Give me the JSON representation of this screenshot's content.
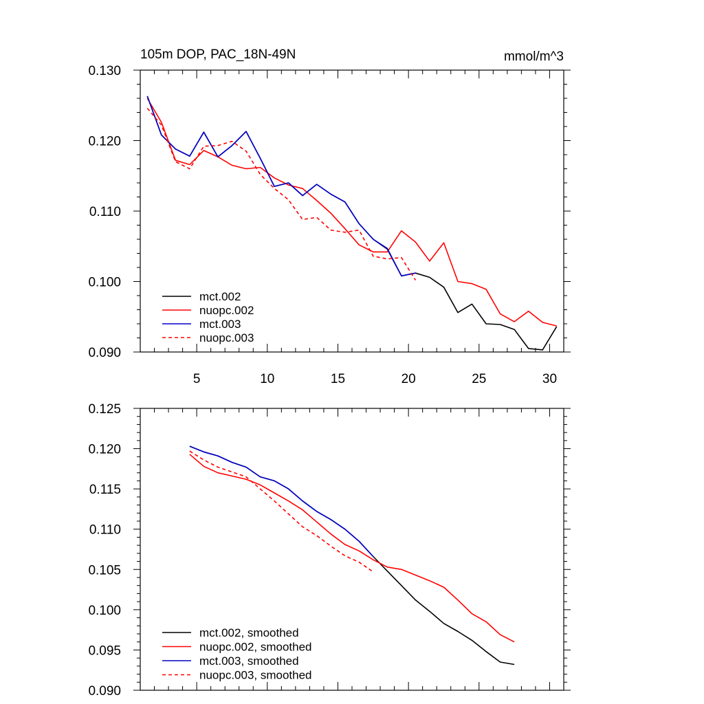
{
  "colors": {
    "mct_002": "#000000",
    "nuopc_002": "#ff0000",
    "mct_003": "#0000cc",
    "nuopc_003": "#ff0000"
  },
  "chart_data": [
    {
      "type": "line",
      "title": "105m DOP, PAC_18N-49N",
      "units": "mmol/m^3",
      "xlim": [
        1,
        31
      ],
      "ylim": [
        0.09,
        0.13
      ],
      "x_ticks": [
        5,
        10,
        15,
        20,
        25,
        30
      ],
      "x_tick_labels": [
        "5",
        "10",
        "15",
        "20",
        "25",
        "30"
      ],
      "y_ticks": [
        0.09,
        0.1,
        0.11,
        0.12,
        0.13
      ],
      "y_tick_labels": [
        "0.090",
        "0.100",
        "0.110",
        "0.120",
        "0.130"
      ],
      "legend_position": "bottom-left",
      "series": [
        {
          "name": "mct.002",
          "color_key": "mct_002",
          "dash": "solid",
          "x": [
            1.5,
            2.5,
            3.5,
            4.5,
            5.5,
            6.5,
            7.5,
            8.5,
            9.5,
            10.5,
            11.5,
            12.5,
            13.5,
            14.5,
            15.5,
            16.5,
            17.5,
            18.5,
            19.5,
            20.5,
            21.5,
            22.5,
            23.5,
            24.5,
            25.5,
            26.5,
            27.5,
            28.5,
            29.5,
            30.5
          ],
          "y": [
            0.1263,
            0.1208,
            0.1188,
            0.1178,
            0.1212,
            0.1177,
            0.1193,
            0.1213,
            0.1175,
            0.1135,
            0.114,
            0.1122,
            0.1138,
            0.1124,
            0.1113,
            0.1082,
            0.106,
            0.1046,
            0.1008,
            0.1012,
            0.1006,
            0.0992,
            0.0956,
            0.0968,
            0.094,
            0.0939,
            0.0932,
            0.0905,
            0.0903,
            0.0936
          ]
        },
        {
          "name": "nuopc.002",
          "color_key": "nuopc_002",
          "dash": "solid",
          "x": [
            1.5,
            2.5,
            3.5,
            4.5,
            5.5,
            6.5,
            7.5,
            8.5,
            9.5,
            10.5,
            11.5,
            12.5,
            13.5,
            14.5,
            15.5,
            16.5,
            17.5,
            18.5,
            19.5,
            20.5,
            21.5,
            22.5,
            23.5,
            24.5,
            25.5,
            26.5,
            27.5,
            28.5,
            29.5,
            30.5
          ],
          "y": [
            0.126,
            0.1226,
            0.1172,
            0.1166,
            0.1186,
            0.1177,
            0.1165,
            0.116,
            0.1162,
            0.1147,
            0.1137,
            0.1132,
            0.1115,
            0.1097,
            0.1075,
            0.1052,
            0.1042,
            0.1042,
            0.1072,
            0.1056,
            0.1029,
            0.1055,
            0.1,
            0.0997,
            0.0989,
            0.0954,
            0.0943,
            0.0958,
            0.0942,
            0.0937
          ]
        },
        {
          "name": "mct.003",
          "color_key": "mct_003",
          "dash": "solid",
          "x": [
            1.5,
            2.5,
            3.5,
            4.5,
            5.5,
            6.5,
            7.5,
            8.5,
            9.5,
            10.5,
            11.5,
            12.5,
            13.5,
            14.5,
            15.5,
            16.5,
            17.5,
            18.5,
            19.5,
            20.5
          ],
          "y": [
            0.1263,
            0.1208,
            0.1188,
            0.1178,
            0.1212,
            0.1177,
            0.1193,
            0.1213,
            0.1175,
            0.1135,
            0.114,
            0.1122,
            0.1138,
            0.1124,
            0.1113,
            0.1082,
            0.106,
            0.1047,
            0.1008,
            0.1012
          ]
        },
        {
          "name": "nuopc.003",
          "color_key": "nuopc_003",
          "dash": "dashed",
          "x": [
            1.5,
            2.5,
            3.5,
            4.5,
            5.5,
            6.5,
            7.5,
            8.5,
            9.5,
            10.5,
            11.5,
            12.5,
            13.5,
            14.5,
            15.5,
            16.5,
            17.5,
            18.5,
            19.5,
            20.5
          ],
          "y": [
            0.1246,
            0.1222,
            0.117,
            0.116,
            0.1192,
            0.1193,
            0.1199,
            0.1185,
            0.1152,
            0.1132,
            0.1116,
            0.1088,
            0.1091,
            0.1073,
            0.107,
            0.1073,
            0.1036,
            0.1032,
            0.1034,
            0.1002
          ]
        }
      ]
    },
    {
      "type": "line",
      "xlim": [
        1,
        31
      ],
      "ylim": [
        0.09,
        0.125
      ],
      "x_ticks": [
        5,
        10,
        15,
        20,
        25,
        30
      ],
      "y_ticks": [
        0.09,
        0.095,
        0.1,
        0.105,
        0.11,
        0.115,
        0.12,
        0.125
      ],
      "y_tick_labels": [
        "0.090",
        "0.095",
        "0.100",
        "0.105",
        "0.110",
        "0.115",
        "0.120",
        "0.125"
      ],
      "legend_position": "bottom-left",
      "series": [
        {
          "name": "mct.002, smoothed",
          "color_key": "mct_002",
          "dash": "solid",
          "x": [
            4.5,
            5.5,
            6.5,
            7.5,
            8.5,
            9.5,
            10.5,
            11.5,
            12.5,
            13.5,
            14.5,
            15.5,
            16.5,
            17.5,
            18.5,
            19.5,
            20.5,
            21.5,
            22.5,
            23.5,
            24.5,
            25.5,
            26.5,
            27.5
          ],
          "y": [
            0.1203,
            0.1196,
            0.1191,
            0.1183,
            0.1177,
            0.1165,
            0.116,
            0.115,
            0.1135,
            0.1122,
            0.1112,
            0.11,
            0.1085,
            0.1066,
            0.1048,
            0.103,
            0.1012,
            0.0998,
            0.0983,
            0.0973,
            0.0962,
            0.0948,
            0.0935,
            0.0932
          ]
        },
        {
          "name": "nuopc.002, smoothed",
          "color_key": "nuopc_002",
          "dash": "solid",
          "x": [
            4.5,
            5.5,
            6.5,
            7.5,
            8.5,
            9.5,
            10.5,
            11.5,
            12.5,
            13.5,
            14.5,
            15.5,
            16.5,
            17.5,
            18.5,
            19.5,
            20.5,
            21.5,
            22.5,
            23.5,
            24.5,
            25.5,
            26.5,
            27.5
          ],
          "y": [
            0.1193,
            0.1178,
            0.117,
            0.1166,
            0.1162,
            0.1155,
            0.1145,
            0.1135,
            0.1124,
            0.1109,
            0.1094,
            0.1081,
            0.1073,
            0.1062,
            0.1053,
            0.105,
            0.1043,
            0.1036,
            0.1028,
            0.1012,
            0.0995,
            0.0985,
            0.0969,
            0.096
          ]
        },
        {
          "name": "mct.003, smoothed",
          "color_key": "mct_003",
          "dash": "solid",
          "x": [
            4.5,
            5.5,
            6.5,
            7.5,
            8.5,
            9.5,
            10.5,
            11.5,
            12.5,
            13.5,
            14.5,
            15.5,
            16.5,
            17.5
          ],
          "y": [
            0.1203,
            0.1196,
            0.1191,
            0.1183,
            0.1177,
            0.1165,
            0.116,
            0.115,
            0.1135,
            0.1122,
            0.1112,
            0.11,
            0.1085,
            0.1066
          ]
        },
        {
          "name": "nuopc.003, smoothed",
          "color_key": "nuopc_003",
          "dash": "dashed",
          "x": [
            4.5,
            5.5,
            6.5,
            7.5,
            8.5,
            9.5,
            10.5,
            11.5,
            12.5,
            13.5,
            14.5,
            15.5,
            16.5,
            17.5
          ],
          "y": [
            0.1197,
            0.1186,
            0.1177,
            0.1171,
            0.1165,
            0.115,
            0.1135,
            0.1119,
            0.1103,
            0.1092,
            0.1079,
            0.1067,
            0.1059,
            0.1047
          ]
        }
      ]
    }
  ]
}
